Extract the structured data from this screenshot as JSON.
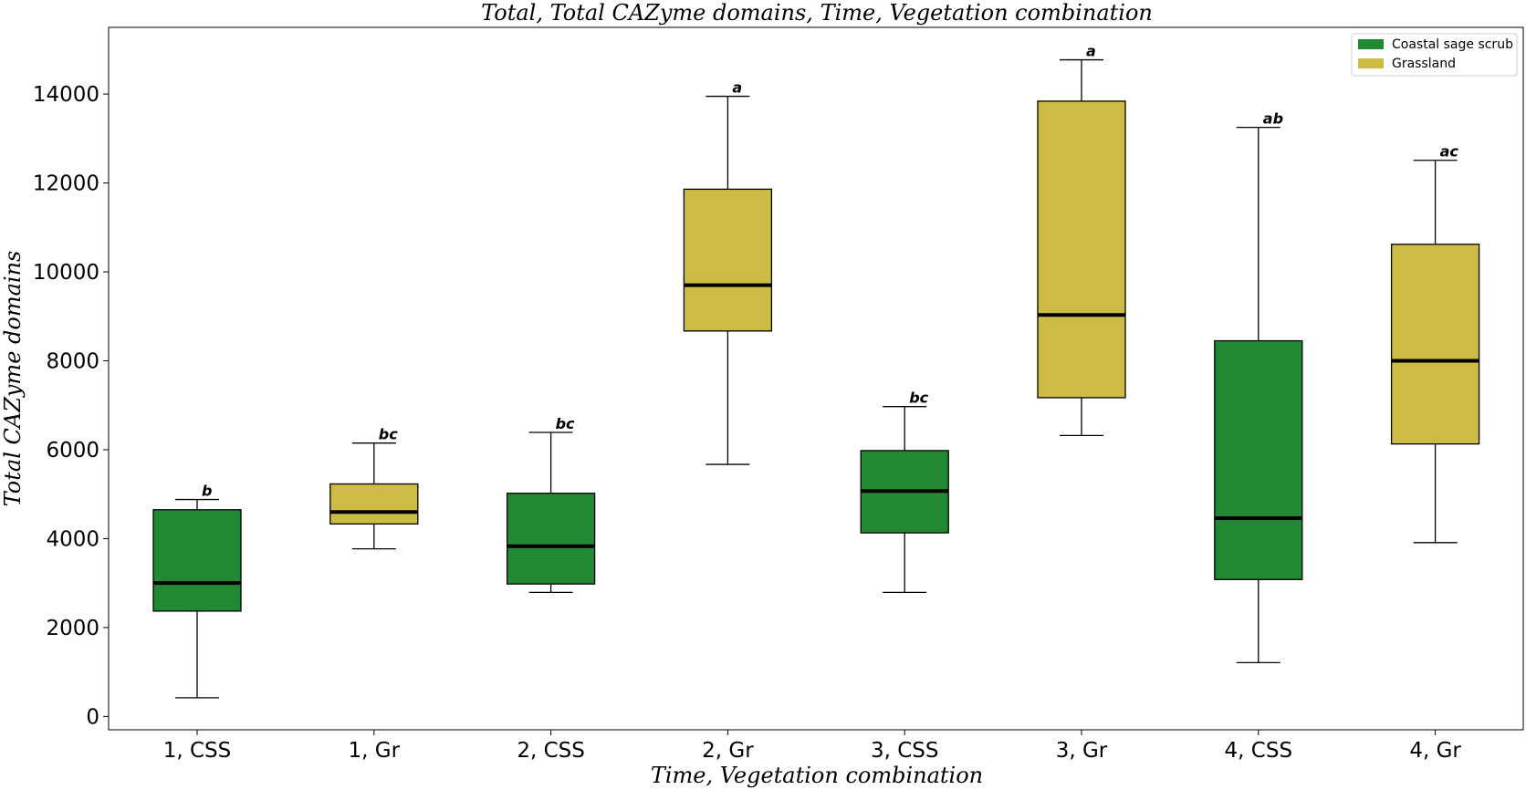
{
  "chart_data": {
    "type": "box",
    "title": "Total, Total CAZyme domains, Time, Vegetation combination",
    "xlabel": "Time, Vegetation combination",
    "ylabel": "Total CAZyme domains",
    "ylim": [
      -300,
      15500
    ],
    "yticks": [
      0,
      2000,
      4000,
      6000,
      8000,
      10000,
      12000,
      14000
    ],
    "legend_position": "top-right",
    "legend": [
      {
        "name": "Coastal sage scrub",
        "color": "#228833"
      },
      {
        "name": "Grassland",
        "color": "#CCBB44"
      }
    ],
    "categories": [
      "1, CSS",
      "1, Gr",
      "2, CSS",
      "2, Gr",
      "3, CSS",
      "3, Gr",
      "4, CSS",
      "4, Gr"
    ],
    "boxes": [
      {
        "category": "1, CSS",
        "group": "Coastal sage scrub",
        "whisker_low": 420,
        "q1": 2370,
        "median": 3000,
        "q3": 4650,
        "whisker_high": 4880,
        "significance": "b"
      },
      {
        "category": "1, Gr",
        "group": "Grassland",
        "whisker_low": 3770,
        "q1": 4330,
        "median": 4600,
        "q3": 5230,
        "whisker_high": 6150,
        "significance": "bc"
      },
      {
        "category": "2, CSS",
        "group": "Coastal sage scrub",
        "whisker_low": 2790,
        "q1": 2980,
        "median": 3830,
        "q3": 5020,
        "whisker_high": 6390,
        "significance": "bc"
      },
      {
        "category": "2, Gr",
        "group": "Grassland",
        "whisker_low": 5670,
        "q1": 8670,
        "median": 9700,
        "q3": 11860,
        "whisker_high": 13950,
        "significance": "a"
      },
      {
        "category": "3, CSS",
        "group": "Coastal sage scrub",
        "whisker_low": 2790,
        "q1": 4130,
        "median": 5070,
        "q3": 5980,
        "whisker_high": 6970,
        "significance": "bc"
      },
      {
        "category": "3, Gr",
        "group": "Grassland",
        "whisker_low": 6320,
        "q1": 7170,
        "median": 9030,
        "q3": 13840,
        "whisker_high": 14770,
        "significance": "a"
      },
      {
        "category": "4, CSS",
        "group": "Coastal sage scrub",
        "whisker_low": 1210,
        "q1": 3080,
        "median": 4460,
        "q3": 8450,
        "whisker_high": 13250,
        "significance": "ab"
      },
      {
        "category": "4, Gr",
        "group": "Grassland",
        "whisker_low": 3910,
        "q1": 6130,
        "median": 8000,
        "q3": 10620,
        "whisker_high": 12510,
        "significance": "ac"
      }
    ]
  }
}
